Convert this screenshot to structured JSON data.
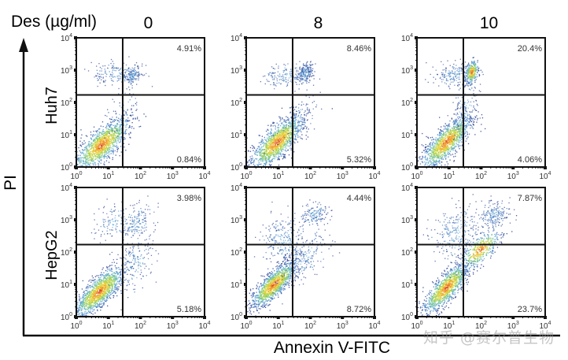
{
  "chart_data": {
    "type": "scatter",
    "title": "Des (µg/ml)",
    "xlabel": "Annexin V-FITC",
    "ylabel": "PI",
    "x_scale": "log",
    "y_scale": "log",
    "xlim": [
      1,
      10000
    ],
    "ylim": [
      1,
      10000
    ],
    "x_ticks": [
      "10^0",
      "10^1",
      "10^2",
      "10^3",
      "10^4"
    ],
    "y_ticks": [
      "10^0",
      "10^1",
      "10^2",
      "10^3",
      "10^4"
    ],
    "gate": {
      "x": 28,
      "y": 170
    },
    "columns": [
      "0",
      "8",
      "10"
    ],
    "rows": [
      "Huh7",
      "HepG2"
    ],
    "panels": [
      {
        "row": "Huh7",
        "dose": "0",
        "upper_right_pct": "4.91%",
        "lower_right_pct": "0.84%",
        "populations": [
          {
            "cx": 6,
            "cy": 5,
            "sx": 0.42,
            "sy": 0.4,
            "rho": 0.75,
            "n": 1300,
            "core": true
          },
          {
            "cx": 18,
            "cy": 800,
            "sx": 0.38,
            "sy": 0.18,
            "rho": 0.1,
            "n": 160,
            "core": false
          },
          {
            "cx": 55,
            "cy": 700,
            "sx": 0.12,
            "sy": 0.15,
            "rho": 0.3,
            "n": 140,
            "core": false
          },
          {
            "cx": 25,
            "cy": 40,
            "sx": 0.25,
            "sy": 0.4,
            "rho": 0.4,
            "n": 60,
            "core": false
          }
        ]
      },
      {
        "row": "Huh7",
        "dose": "8",
        "upper_right_pct": "8.46%",
        "lower_right_pct": "5.32%",
        "populations": [
          {
            "cx": 9,
            "cy": 6,
            "sx": 0.4,
            "sy": 0.4,
            "rho": 0.75,
            "n": 1300,
            "core": true
          },
          {
            "cx": 18,
            "cy": 700,
            "sx": 0.35,
            "sy": 0.2,
            "rho": 0.1,
            "n": 170,
            "core": false
          },
          {
            "cx": 65,
            "cy": 800,
            "sx": 0.13,
            "sy": 0.15,
            "rho": 0.3,
            "n": 200,
            "core": false
          },
          {
            "cx": 35,
            "cy": 30,
            "sx": 0.3,
            "sy": 0.35,
            "rho": 0.5,
            "n": 120,
            "core": false
          }
        ]
      },
      {
        "row": "Huh7",
        "dose": "10",
        "upper_right_pct": "20.4%",
        "lower_right_pct": "4.06%",
        "populations": [
          {
            "cx": 8,
            "cy": 6,
            "sx": 0.38,
            "sy": 0.4,
            "rho": 0.78,
            "n": 1200,
            "core": true
          },
          {
            "cx": 14,
            "cy": 700,
            "sx": 0.32,
            "sy": 0.18,
            "rho": 0.1,
            "n": 200,
            "core": false
          },
          {
            "cx": 50,
            "cy": 900,
            "sx": 0.1,
            "sy": 0.18,
            "rho": 0.3,
            "n": 260,
            "core": true
          },
          {
            "cx": 30,
            "cy": 60,
            "sx": 0.2,
            "sy": 0.45,
            "rho": 0.5,
            "n": 150,
            "core": false
          }
        ]
      },
      {
        "row": "HepG2",
        "dose": "0",
        "upper_right_pct": "3.98%",
        "lower_right_pct": "5.18%",
        "populations": [
          {
            "cx": 5,
            "cy": 6,
            "sx": 0.38,
            "sy": 0.38,
            "rho": 0.78,
            "n": 1300,
            "core": true
          },
          {
            "cx": 15,
            "cy": 900,
            "sx": 0.3,
            "sy": 0.25,
            "rho": 0.2,
            "n": 120,
            "core": false
          },
          {
            "cx": 70,
            "cy": 800,
            "sx": 0.25,
            "sy": 0.3,
            "rho": 0.3,
            "n": 170,
            "core": false
          },
          {
            "cx": 60,
            "cy": 40,
            "sx": 0.3,
            "sy": 0.45,
            "rho": 0.4,
            "n": 170,
            "core": false
          }
        ]
      },
      {
        "row": "HepG2",
        "dose": "8",
        "upper_right_pct": "4.44%",
        "lower_right_pct": "8.72%",
        "populations": [
          {
            "cx": 7,
            "cy": 10,
            "sx": 0.35,
            "sy": 0.35,
            "rho": 0.8,
            "n": 1200,
            "core": true
          },
          {
            "cx": 14,
            "cy": 250,
            "sx": 0.35,
            "sy": 0.4,
            "rho": 0.2,
            "n": 260,
            "core": false
          },
          {
            "cx": 130,
            "cy": 1500,
            "sx": 0.2,
            "sy": 0.18,
            "rho": 0.3,
            "n": 150,
            "core": false
          },
          {
            "cx": 60,
            "cy": 60,
            "sx": 0.35,
            "sy": 0.4,
            "rho": 0.6,
            "n": 220,
            "core": false
          }
        ]
      },
      {
        "row": "HepG2",
        "dose": "10",
        "upper_right_pct": "7.87%",
        "lower_right_pct": "23.7%",
        "populations": [
          {
            "cx": 8,
            "cy": 8,
            "sx": 0.35,
            "sy": 0.38,
            "rho": 0.8,
            "n": 1100,
            "core": true
          },
          {
            "cx": 15,
            "cy": 400,
            "sx": 0.35,
            "sy": 0.4,
            "rho": 0.2,
            "n": 260,
            "core": false
          },
          {
            "cx": 90,
            "cy": 120,
            "sx": 0.3,
            "sy": 0.3,
            "rho": 0.7,
            "n": 420,
            "core": true
          },
          {
            "cx": 250,
            "cy": 1500,
            "sx": 0.25,
            "sy": 0.2,
            "rho": 0.4,
            "n": 200,
            "core": false
          }
        ]
      }
    ]
  },
  "watermark": "知乎 @赛尔普生物"
}
